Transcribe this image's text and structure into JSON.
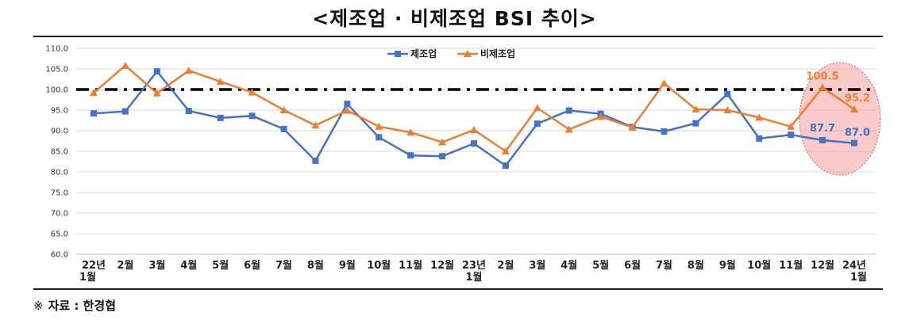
{
  "title": "<제조업 · 비제조업 BSI 추이>",
  "source_mark": "※",
  "source_text": "자료 : 한경협",
  "chart_data": {
    "type": "line",
    "categories": [
      [
        "22년",
        "1월"
      ],
      [
        "2월"
      ],
      [
        "3월"
      ],
      [
        "4월"
      ],
      [
        "5월"
      ],
      [
        "6월"
      ],
      [
        "7월"
      ],
      [
        "8월"
      ],
      [
        "9월"
      ],
      [
        "10월"
      ],
      [
        "11월"
      ],
      [
        "12월"
      ],
      [
        "23년",
        "1월"
      ],
      [
        "2월"
      ],
      [
        "3월"
      ],
      [
        "4월"
      ],
      [
        "5월"
      ],
      [
        "6월"
      ],
      [
        "7월"
      ],
      [
        "8월"
      ],
      [
        "9월"
      ],
      [
        "10월"
      ],
      [
        "11월"
      ],
      [
        "12월"
      ],
      [
        "24년",
        "1월"
      ]
    ],
    "ylim": [
      60,
      110
    ],
    "yticks": [
      "60.0",
      "65.0",
      "70.0",
      "75.0",
      "80.0",
      "85.0",
      "90.0",
      "95.0",
      "100.0",
      "105.0",
      "110.0"
    ],
    "grid": true,
    "reference_line": 100,
    "legend_position": "top-center",
    "series": [
      {
        "name": "제조업",
        "color": "#4472C4",
        "marker": "square",
        "values": [
          94.2,
          94.7,
          104.4,
          94.8,
          93.1,
          93.6,
          90.4,
          82.7,
          96.5,
          88.4,
          84.0,
          83.8,
          86.9,
          81.5,
          91.7,
          94.9,
          94.1,
          90.9,
          89.8,
          91.8,
          98.9,
          88.1,
          89.0,
          87.7,
          87.0
        ]
      },
      {
        "name": "비제조업",
        "color": "#ED7D31",
        "marker": "triangle",
        "values": [
          99.2,
          105.8,
          99.1,
          104.6,
          101.9,
          99.3,
          95.0,
          91.3,
          94.9,
          91.0,
          89.6,
          87.2,
          90.2,
          85.0,
          95.5,
          90.3,
          93.4,
          90.8,
          101.5,
          95.2,
          95.0,
          93.2,
          91.0,
          100.5,
          95.2
        ]
      }
    ],
    "data_labels": [
      {
        "series": 1,
        "index": 23,
        "text": "100.5"
      },
      {
        "series": 1,
        "index": 24,
        "text": "95.2"
      },
      {
        "series": 0,
        "index": 23,
        "text": "87.7"
      },
      {
        "series": 0,
        "index": 24,
        "text": "87.0"
      }
    ],
    "highlight_color": "#F4A6A6"
  }
}
